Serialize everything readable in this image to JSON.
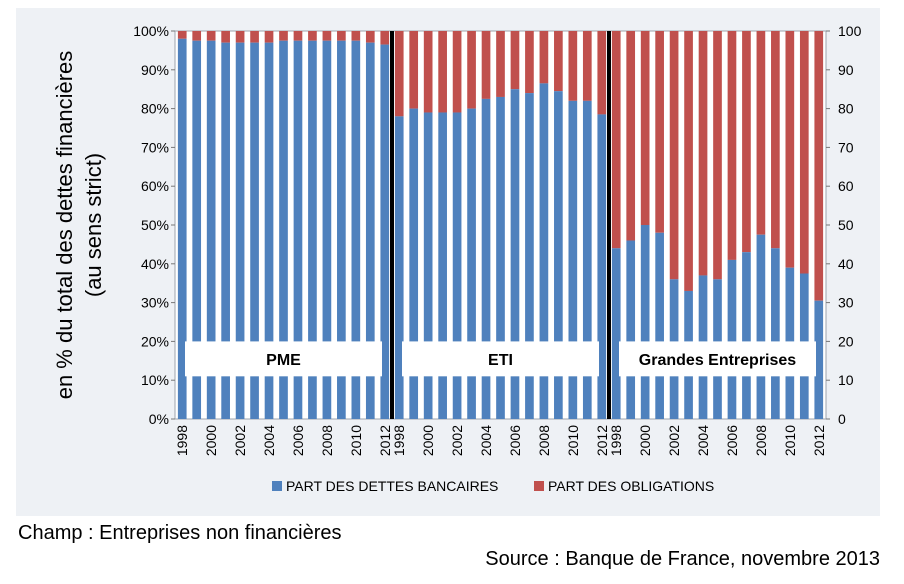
{
  "chart_data": {
    "type": "bar",
    "stacked": true,
    "ylabel_lines": [
      "en % du total des dettes financières",
      "(au sens strict)"
    ],
    "y_left_ticks": [
      "0%",
      "10%",
      "20%",
      "30%",
      "40%",
      "50%",
      "60%",
      "70%",
      "80%",
      "90%",
      "100%"
    ],
    "y_right_ticks": [
      "0",
      "10",
      "20",
      "30",
      "40",
      "50",
      "60",
      "70",
      "80",
      "90",
      "100"
    ],
    "ylim": [
      0,
      100
    ],
    "years": [
      "1998",
      "1999",
      "2000",
      "2001",
      "2002",
      "2003",
      "2004",
      "2005",
      "2006",
      "2007",
      "2008",
      "2009",
      "2010",
      "2011",
      "2012"
    ],
    "x_tick_labels": [
      "1998",
      "",
      "2000",
      "",
      "2002",
      "",
      "2004",
      "",
      "2006",
      "",
      "2008",
      "",
      "2010",
      "",
      "2012"
    ],
    "groups": [
      {
        "label": "PME",
        "bancaires": [
          98,
          97.5,
          97.5,
          97,
          97,
          97,
          97,
          97.5,
          97.5,
          97.5,
          97.5,
          97.5,
          97.5,
          97,
          96.5
        ]
      },
      {
        "label": "ETI",
        "bancaires": [
          78,
          80,
          79,
          79,
          79,
          80,
          82.5,
          83,
          85,
          84,
          86.5,
          84.5,
          82,
          82,
          78.5
        ]
      },
      {
        "label": "Grandes Entreprises",
        "bancaires": [
          44,
          46,
          50,
          48,
          36,
          33,
          37,
          36,
          41,
          43,
          47.5,
          44,
          39,
          37.5,
          30.5
        ]
      }
    ],
    "series": [
      {
        "name": "PART DES DETTES BANCAIRES",
        "color": "#4f81bd"
      },
      {
        "name": "PART DES OBLIGATIONS",
        "color": "#c0504d"
      }
    ],
    "legend_position": "bottom",
    "grid": false
  },
  "notes": {
    "champ": "Champ : Entreprises non financières",
    "source": "Source : Banque de France, novembre 2013"
  }
}
